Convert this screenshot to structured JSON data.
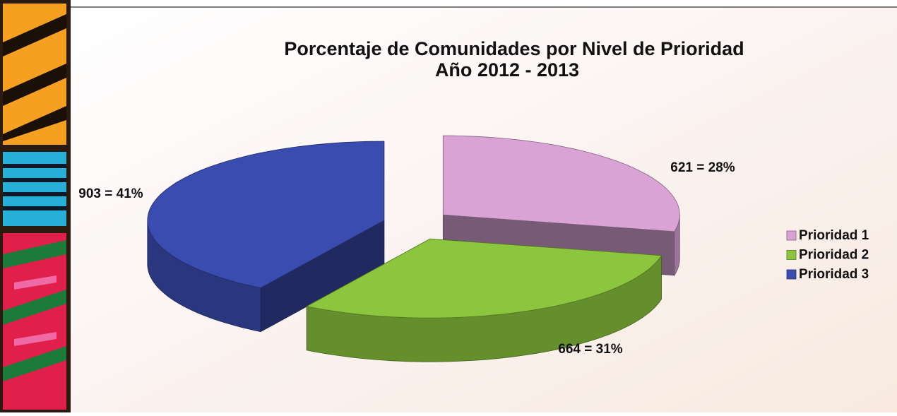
{
  "chart_data": {
    "type": "pie",
    "title": "Porcentaje  de Comunidades  por  Nivel de Prioridad",
    "subtitle": "Año 2012 - 2013",
    "categories": [
      "Prioridad 1",
      "Prioridad 2",
      "Prioridad 3"
    ],
    "values": [
      621,
      664,
      903
    ],
    "value_labels": [
      "621 = 28%",
      "664 = 31%",
      "903 = 41%"
    ],
    "colors": [
      "#d9a3d6",
      "#8cc63e",
      "#3a4cb0"
    ],
    "legend": "right"
  }
}
